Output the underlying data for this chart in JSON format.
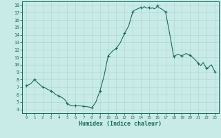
{
  "title": "",
  "xlabel": "Humidex (Indice chaleur)",
  "background_color": "#c8ebe8",
  "grid_color": "#b0d8d4",
  "line_color": "#1a6b5a",
  "marker_color": "#1a6b5a",
  "xlim": [
    -0.5,
    23.5
  ],
  "ylim": [
    3.5,
    18.5
  ],
  "yticks": [
    4,
    5,
    6,
    7,
    8,
    9,
    10,
    11,
    12,
    13,
    14,
    15,
    16,
    17,
    18
  ],
  "xticks": [
    0,
    1,
    2,
    3,
    4,
    5,
    6,
    7,
    8,
    9,
    10,
    11,
    12,
    13,
    14,
    15,
    16,
    17,
    18,
    19,
    20,
    21,
    22,
    23
  ],
  "x": [
    0,
    0.3,
    0.6,
    1.0,
    1.2,
    1.5,
    1.8,
    2.0,
    2.3,
    2.6,
    3.0,
    3.3,
    3.6,
    4.0,
    4.2,
    4.5,
    4.8,
    5.0,
    5.3,
    5.6,
    6.0,
    6.2,
    6.5,
    6.8,
    7.0,
    7.2,
    7.5,
    7.8,
    8.0,
    8.5,
    9.0,
    9.5,
    10.0,
    10.5,
    11.0,
    11.5,
    12.0,
    12.5,
    13.0,
    13.2,
    13.4,
    13.6,
    13.8,
    14.0,
    14.2,
    14.4,
    14.6,
    14.8,
    15.0,
    15.2,
    15.4,
    15.6,
    15.8,
    16.0,
    16.2,
    16.5,
    17.0,
    17.5,
    18.0,
    18.5,
    19.0,
    19.5,
    20.0,
    20.5,
    21.0,
    21.3,
    21.6,
    22.0,
    22.3,
    22.6,
    23.0
  ],
  "y": [
    7.2,
    7.3,
    7.5,
    8.0,
    7.8,
    7.5,
    7.2,
    7.0,
    6.9,
    6.7,
    6.5,
    6.3,
    6.0,
    5.8,
    5.7,
    5.5,
    5.2,
    4.8,
    4.6,
    4.5,
    4.5,
    4.5,
    4.5,
    4.45,
    4.4,
    4.4,
    4.35,
    4.3,
    4.2,
    5.0,
    6.5,
    8.5,
    11.2,
    11.8,
    12.2,
    13.0,
    14.2,
    15.2,
    17.1,
    17.3,
    17.4,
    17.5,
    17.6,
    17.7,
    17.6,
    17.8,
    17.65,
    17.6,
    17.7,
    17.55,
    17.65,
    17.5,
    17.6,
    17.9,
    17.65,
    17.5,
    17.1,
    14.2,
    11.1,
    11.4,
    11.2,
    11.5,
    11.3,
    10.8,
    10.2,
    9.9,
    10.3,
    9.5,
    9.7,
    10.0,
    9.1
  ],
  "marker_x": [
    0,
    1,
    2,
    3,
    4,
    5,
    6,
    7,
    8,
    9,
    10,
    11,
    12,
    13,
    14,
    15,
    16,
    17,
    18,
    19,
    20,
    21,
    22,
    23
  ],
  "marker_y": [
    7.2,
    8.0,
    7.0,
    6.5,
    5.8,
    4.8,
    4.5,
    4.4,
    4.2,
    6.5,
    11.2,
    12.2,
    14.2,
    17.1,
    17.7,
    17.7,
    17.9,
    17.1,
    11.1,
    11.2,
    11.3,
    10.2,
    9.5,
    9.1
  ]
}
